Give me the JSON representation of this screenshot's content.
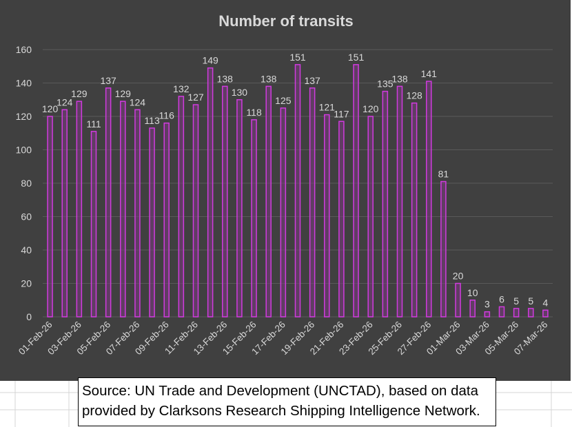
{
  "chart_data": {
    "type": "bar",
    "title": "Number of transits",
    "categories": [
      "01-Feb-26",
      "02-Feb-26",
      "03-Feb-26",
      "04-Feb-26",
      "05-Feb-26",
      "06-Feb-26",
      "07-Feb-26",
      "08-Feb-26",
      "09-Feb-26",
      "10-Feb-26",
      "11-Feb-26",
      "12-Feb-26",
      "13-Feb-26",
      "14-Feb-26",
      "15-Feb-26",
      "16-Feb-26",
      "17-Feb-26",
      "18-Feb-26",
      "19-Feb-26",
      "20-Feb-26",
      "21-Feb-26",
      "22-Feb-26",
      "23-Feb-26",
      "24-Feb-26",
      "25-Feb-26",
      "26-Feb-26",
      "27-Feb-26",
      "28-Feb-26",
      "01-Mar-26",
      "02-Mar-26",
      "03-Mar-26",
      "04-Mar-26",
      "05-Mar-26",
      "06-Mar-26",
      "07-Mar-26"
    ],
    "tick_labels": [
      "01-Feb-26",
      "",
      "03-Feb-26",
      "",
      "05-Feb-26",
      "",
      "07-Feb-26",
      "",
      "09-Feb-26",
      "",
      "11-Feb-26",
      "",
      "13-Feb-26",
      "",
      "15-Feb-26",
      "",
      "17-Feb-26",
      "",
      "19-Feb-26",
      "",
      "21-Feb-26",
      "",
      "23-Feb-26",
      "",
      "25-Feb-26",
      "",
      "27-Feb-26",
      "",
      "01-Mar-26",
      "",
      "03-Mar-26",
      "",
      "05-Mar-26",
      "",
      "07-Mar-26"
    ],
    "values": [
      120,
      124,
      129,
      111,
      137,
      129,
      124,
      113,
      116,
      132,
      127,
      149,
      138,
      130,
      118,
      138,
      125,
      151,
      137,
      121,
      117,
      151,
      120,
      135,
      138,
      128,
      141,
      81,
      20,
      10,
      3,
      6,
      5,
      5,
      4
    ],
    "ylim": [
      0,
      160
    ],
    "yticks": [
      "0",
      "20",
      "40",
      "60",
      "80",
      "100",
      "120",
      "140",
      "160"
    ],
    "xlabel": "",
    "ylabel": "",
    "grid": true,
    "legend": "none",
    "colors": {
      "background": "#404040",
      "bar_fill": "#7a3a80",
      "bar_stroke": "#d23ae0",
      "text": "#d9d9d9",
      "gridline": "#5a5a5a"
    }
  },
  "source_note": {
    "line1": "Source: UN Trade and Development (UNCTAD), based on data",
    "line2": "provided by Clarksons Research Shipping Intelligence Network."
  }
}
